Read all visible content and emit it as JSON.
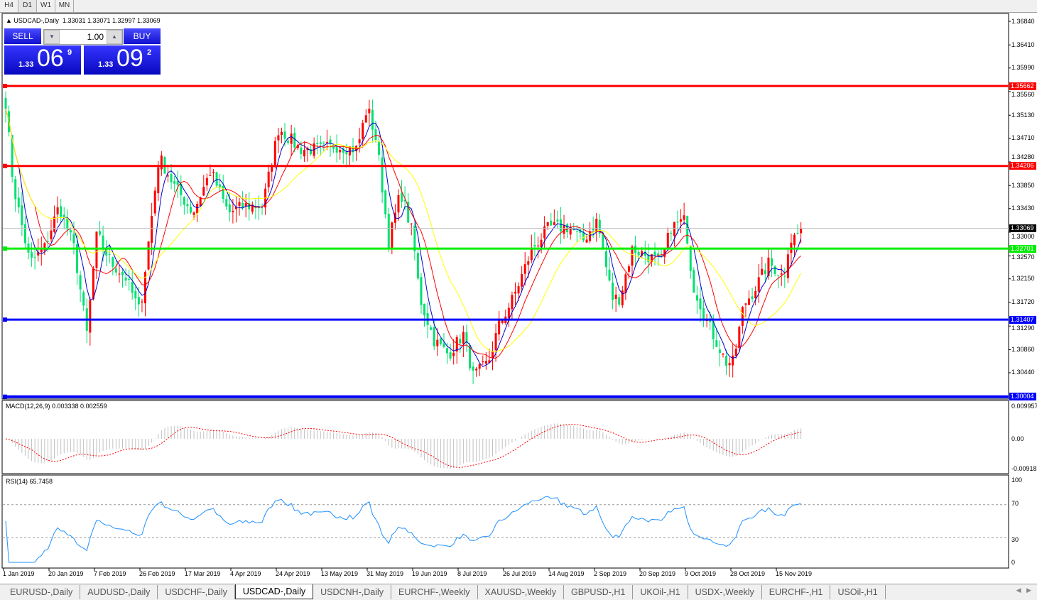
{
  "timeframes": [
    "H4",
    "D1",
    "W1",
    "MN"
  ],
  "active_timeframe": "D1",
  "header": {
    "symbol": "USDCAD-,Daily",
    "ohlc": "1.33031 1.33071 1.32997 1.33069"
  },
  "one_click": {
    "sell_label": "SELL",
    "buy_label": "BUY",
    "lot": "1.00",
    "sell": {
      "small": "1.33",
      "big": "06",
      "pip": "9"
    },
    "buy": {
      "small": "1.33",
      "big": "09",
      "pip": "2"
    }
  },
  "price_axis": [
    "1.36840",
    "1.36410",
    "1.35990",
    "1.35560",
    "1.35130",
    "1.34710",
    "1.34280",
    "1.33850",
    "1.33430",
    "1.33000",
    "1.32570",
    "1.32150",
    "1.31720",
    "1.31290",
    "1.30860",
    "1.30440"
  ],
  "levels": [
    {
      "price": "1.35662",
      "color": "#ff0000"
    },
    {
      "price": "1.34206",
      "color": "#ff0000"
    },
    {
      "price": "1.32701",
      "color": "#00ee00"
    },
    {
      "price": "1.31407",
      "color": "#0000ff"
    },
    {
      "price": "1.30004",
      "color": "#0000ff"
    }
  ],
  "current_price": "1.33069",
  "macd": {
    "label": "MACD(12,26,9) 0.003338 0.002559",
    "axis": [
      "0.009957",
      "0.00",
      "-0.00918"
    ]
  },
  "rsi": {
    "label": "RSI(14) 65.7458",
    "axis": [
      "100",
      "70",
      "30",
      "0"
    ]
  },
  "date_axis": [
    "1 Jan 2019",
    "20 Jan 2019",
    "7 Feb 2019",
    "26 Feb 2019",
    "17 Mar 2019",
    "4 Apr 2019",
    "24 Apr 2019",
    "13 May 2019",
    "31 May 2019",
    "19 Jun 2019",
    "8 Jul 2019",
    "26 Jul 2019",
    "14 Aug 2019",
    "2 Sep 2019",
    "20 Sep 2019",
    "9 Oct 2019",
    "28 Oct 2019",
    "15 Nov 2019"
  ],
  "colors": {
    "bull": "#ff0000",
    "bear": "#00e070",
    "ma_fast": "#0000cc",
    "ma_mid": "#ff0000",
    "ma_slow": "#ffff00",
    "rsi": "#1e90ff"
  },
  "tabs": [
    "EURUSD-,Daily",
    "AUDUSD-,Daily",
    "USDCHF-,Daily",
    "USDCAD-,Daily",
    "USDCNH-,Daily",
    "EURCHF-,Weekly",
    "XAUUSD-,Weekly",
    "GBPUSD-,H1",
    "UKOil-,H1",
    "USDX-,Weekly",
    "EURCHF-,H1",
    "USOil-,H1"
  ],
  "active_tab": "USDCAD-,Daily",
  "chart_data": {
    "type": "candlestick",
    "close_keypoints": [
      [
        "2019-01-01",
        1.358
      ],
      [
        "2019-01-05",
        1.3387
      ],
      [
        "2019-01-12",
        1.3244
      ],
      [
        "2019-01-18",
        1.327
      ],
      [
        "2019-01-24",
        1.3348
      ],
      [
        "2019-01-30",
        1.327
      ],
      [
        "2019-02-04",
        1.3115
      ],
      [
        "2019-02-08",
        1.3296
      ],
      [
        "2019-02-14",
        1.3244
      ],
      [
        "2019-02-20",
        1.3218
      ],
      [
        "2019-02-26",
        1.3154
      ],
      [
        "2019-03-02",
        1.3296
      ],
      [
        "2019-03-06",
        1.3438
      ],
      [
        "2019-03-12",
        1.3387
      ],
      [
        "2019-03-20",
        1.3335
      ],
      [
        "2019-03-27",
        1.3412
      ],
      [
        "2019-04-03",
        1.3335
      ],
      [
        "2019-04-10",
        1.3348
      ],
      [
        "2019-04-18",
        1.3348
      ],
      [
        "2019-04-25",
        1.349
      ],
      [
        "2019-05-04",
        1.3451
      ],
      [
        "2019-05-13",
        1.3451
      ],
      [
        "2019-05-18",
        1.3458
      ],
      [
        "2019-05-27",
        1.3451
      ],
      [
        "2019-05-31",
        1.3529
      ],
      [
        "2019-06-04",
        1.3464
      ],
      [
        "2019-06-09",
        1.3283
      ],
      [
        "2019-06-14",
        1.3374
      ],
      [
        "2019-06-19",
        1.3296
      ],
      [
        "2019-06-22",
        1.318
      ],
      [
        "2019-06-28",
        1.3103
      ],
      [
        "2019-07-04",
        1.3077
      ],
      [
        "2019-07-10",
        1.3115
      ],
      [
        "2019-07-14",
        1.3037
      ],
      [
        "2019-07-20",
        1.3063
      ],
      [
        "2019-07-24",
        1.3128
      ],
      [
        "2019-07-30",
        1.318
      ],
      [
        "2019-08-07",
        1.327
      ],
      [
        "2019-08-14",
        1.3309
      ],
      [
        "2019-08-23",
        1.3309
      ],
      [
        "2019-08-28",
        1.3283
      ],
      [
        "2019-09-03",
        1.3322
      ],
      [
        "2019-09-09",
        1.318
      ],
      [
        "2019-09-12",
        1.318
      ],
      [
        "2019-09-17",
        1.327
      ],
      [
        "2019-09-23",
        1.3257
      ],
      [
        "2019-09-29",
        1.3244
      ],
      [
        "2019-10-03",
        1.3309
      ],
      [
        "2019-10-09",
        1.3322
      ],
      [
        "2019-10-12",
        1.3206
      ],
      [
        "2019-10-19",
        1.3128
      ],
      [
        "2019-10-26",
        1.3063
      ],
      [
        "2019-10-29",
        1.3063
      ],
      [
        "2019-11-02",
        1.3167
      ],
      [
        "2019-11-06",
        1.3193
      ],
      [
        "2019-11-12",
        1.3244
      ],
      [
        "2019-11-18",
        1.3218
      ],
      [
        "2019-11-20",
        1.3283
      ],
      [
        "2019-11-26",
        1.33069
      ]
    ],
    "ylim": [
      1.3,
      1.37
    ]
  }
}
